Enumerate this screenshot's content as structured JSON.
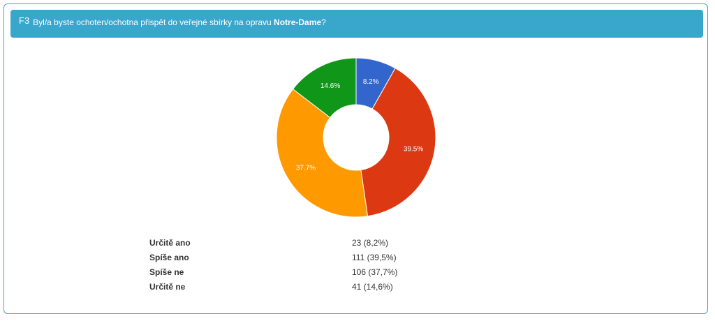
{
  "header": {
    "code": "F3",
    "text_before": "Byl/a byste ochoten/ochotna přispět do veřejné sbírky na opravu ",
    "text_bold": "Notre-Dame",
    "text_after": "?"
  },
  "chart_data": {
    "type": "pie",
    "variant": "donut",
    "slices": [
      {
        "label": "Určitě ano",
        "value": 23,
        "percent": 8.2,
        "percent_label": "8.2%",
        "color": "#3366cc"
      },
      {
        "label": "Spíše ano",
        "value": 111,
        "percent": 39.5,
        "percent_label": "39.5%",
        "color": "#dc3912"
      },
      {
        "label": "Spíše ne",
        "value": 106,
        "percent": 37.7,
        "percent_label": "37.7%",
        "color": "#ff9900"
      },
      {
        "label": "Určitě ne",
        "value": 41,
        "percent": 14.6,
        "percent_label": "14.6%",
        "color": "#109618"
      }
    ]
  },
  "table": {
    "rows": [
      {
        "label": "Určitě ano",
        "value": "23 (8,2%)"
      },
      {
        "label": "Spíše ano",
        "value": "111 (39,5%)"
      },
      {
        "label": "Spíše ne",
        "value": "106 (37,7%)"
      },
      {
        "label": "Určitě ne",
        "value": "41 (14,6%)"
      }
    ]
  }
}
